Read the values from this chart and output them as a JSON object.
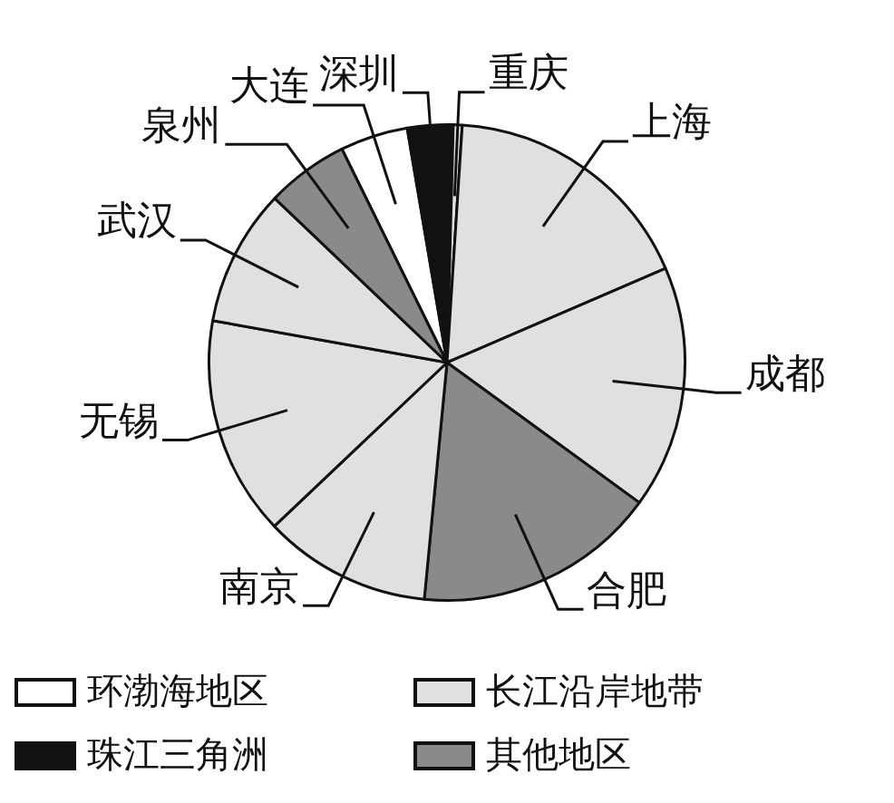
{
  "chart_data": {
    "type": "pie",
    "categories": [
      "大连",
      "深圳",
      "重庆",
      "上海",
      "成都",
      "合肥",
      "南京",
      "无锡",
      "武汉",
      "泉州"
    ],
    "values": [
      4.6,
      3.1,
      0.6,
      17.5,
      16.5,
      16.5,
      11.4,
      14.9,
      9.3,
      5.6
    ],
    "colors": [
      "#ffffff",
      "#111111",
      "#e0e0e0",
      "#e0e0e0",
      "#e0e0e0",
      "#8a8a8a",
      "#e0e0e0",
      "#e0e0e0",
      "#e0e0e0",
      "#8a8a8a"
    ],
    "annotations": [
      "环渤海地区",
      "珠江三角洲",
      "长江沿岸地带",
      "其他地区"
    ]
  }
}
